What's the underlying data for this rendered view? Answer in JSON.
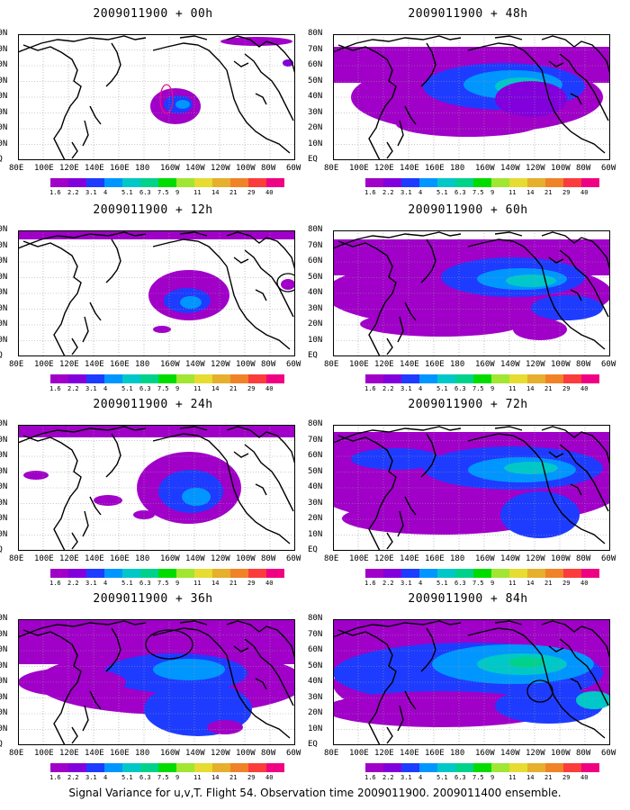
{
  "panels": [
    {
      "title": "2009011900 + 00h"
    },
    {
      "title": "2009011900 + 48h"
    },
    {
      "title": "2009011900 + 12h"
    },
    {
      "title": "2009011900 + 60h"
    },
    {
      "title": "2009011900 + 24h"
    },
    {
      "title": "2009011900 + 72h"
    },
    {
      "title": "2009011900 + 36h"
    },
    {
      "title": "2009011900 + 84h"
    }
  ],
  "lat_labels": [
    "80N",
    "70N",
    "60N",
    "50N",
    "40N",
    "30N",
    "20N",
    "10N",
    "EQ"
  ],
  "lon_labels": [
    "80E",
    "100E",
    "120E",
    "140E",
    "160E",
    "180",
    "160W",
    "140W",
    "120W",
    "100W",
    "80W",
    "60W"
  ],
  "colorbar": {
    "labels": [
      "1.6",
      "2.2",
      "3.1",
      "4",
      "5.1",
      "6.3",
      "7.5",
      "9",
      "11",
      "14",
      "21",
      "29",
      "40"
    ],
    "colors": [
      "#a000c8",
      "#8200dc",
      "#1e3cff",
      "#0096ff",
      "#00c8c8",
      "#00d28c",
      "#00dc00",
      "#a0e632",
      "#e6dc32",
      "#e6af2d",
      "#f08228",
      "#fa3c3c",
      "#f00082"
    ]
  },
  "footer": "Signal Variance for u,v,T. Flight 54. Observation time 2009011900. 2009011400 ensemble."
}
